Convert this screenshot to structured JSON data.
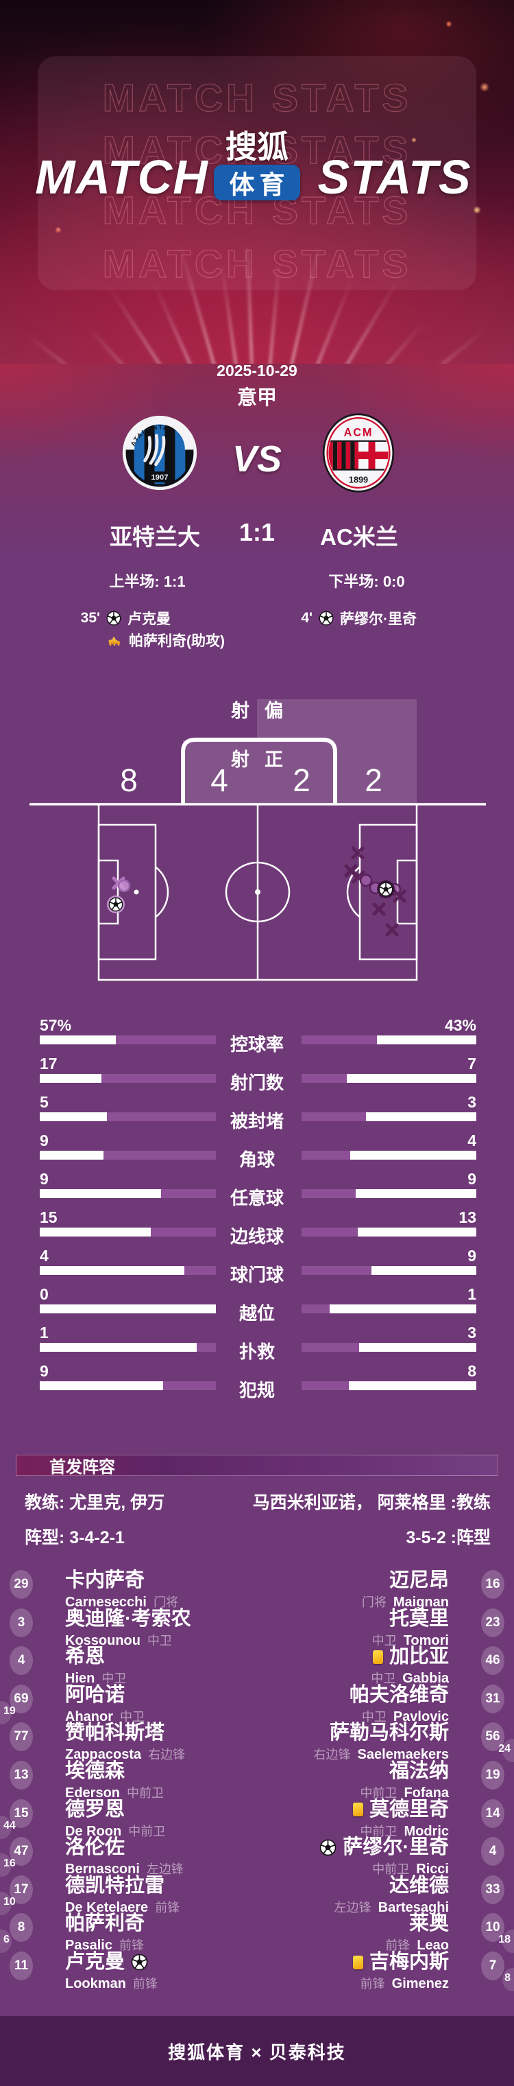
{
  "colors": {
    "page_purple": "#6f3877",
    "footer_purple": "#4a1d50",
    "bar_fill_purple": "#8d4f96",
    "badge_blue": "#1a5faf",
    "marker_dark": "#5a2158",
    "marker_light": "#b578c2",
    "yellow_card": "#f5c518"
  },
  "header": {
    "watermark": "MATCH STATS",
    "title_left": "MATCH",
    "title_right": "STATS",
    "logo_top": "搜狐",
    "logo_bottom": "体育"
  },
  "match": {
    "date": "2025-10-29",
    "league": "意甲",
    "vs": "VS",
    "score": "1:1",
    "home": {
      "name": "亚特兰大",
      "crest_title": "ATALANTA",
      "crest_year": "1907"
    },
    "away": {
      "name": "AC米兰",
      "crest_title": "ACM",
      "crest_year": "1899"
    },
    "half1": "上半场: 1:1",
    "half2": "下半场: 0:0",
    "events_home": [
      {
        "minute": "35'",
        "icon": "goal",
        "text": "卢克曼"
      },
      {
        "minute": "",
        "icon": "assist",
        "text": "帕萨利奇(助攻)"
      }
    ],
    "events_away": [
      {
        "minute": "4'",
        "icon": "goal",
        "text": "萨缪尔·里奇"
      }
    ]
  },
  "shot_chart": {
    "off_label_1": "射",
    "off_label_2": "偏",
    "on_label_1": "射",
    "on_label_2": "正",
    "home_off": "8",
    "home_on": "4",
    "away_on": "2",
    "away_off": "2",
    "markers": [
      {
        "side": "away",
        "kind": "x",
        "x": 173,
        "y": 287
      },
      {
        "side": "away",
        "kind": "circle",
        "x": 181,
        "y": 291
      },
      {
        "side": "away",
        "kind": "ball",
        "x": 169,
        "y": 318
      },
      {
        "side": "home",
        "kind": "x",
        "x": 522,
        "y": 243
      },
      {
        "side": "home",
        "kind": "x",
        "x": 512,
        "y": 269
      },
      {
        "side": "home",
        "kind": "x",
        "x": 523,
        "y": 278
      },
      {
        "side": "home",
        "kind": "circle",
        "x": 534,
        "y": 283
      },
      {
        "side": "home",
        "kind": "circle",
        "x": 548,
        "y": 294
      },
      {
        "side": "home",
        "kind": "circle",
        "x": 576,
        "y": 296
      },
      {
        "side": "home",
        "kind": "x",
        "x": 583,
        "y": 306
      },
      {
        "side": "home",
        "kind": "x",
        "x": 553,
        "y": 325
      },
      {
        "side": "home",
        "kind": "x",
        "x": 572,
        "y": 355
      },
      {
        "side": "home",
        "kind": "ball",
        "x": 563,
        "y": 296
      }
    ]
  },
  "stats": {
    "rows": [
      {
        "label": "控球率",
        "home": "57%",
        "away": "43%",
        "home_fill": 0.57,
        "away_fill": 0.43
      },
      {
        "label": "射门数",
        "home": "17",
        "away": "7",
        "home_fill": 0.65,
        "away_fill": 0.26
      },
      {
        "label": "被封堵",
        "home": "5",
        "away": "3",
        "home_fill": 0.62,
        "away_fill": 0.37
      },
      {
        "label": "角球",
        "home": "9",
        "away": "4",
        "home_fill": 0.64,
        "away_fill": 0.28
      },
      {
        "label": "任意球",
        "home": "9",
        "away": "9",
        "home_fill": 0.31,
        "away_fill": 0.31
      },
      {
        "label": "边线球",
        "home": "15",
        "away": "13",
        "home_fill": 0.37,
        "away_fill": 0.32
      },
      {
        "label": "球门球",
        "home": "4",
        "away": "9",
        "home_fill": 0.18,
        "away_fill": 0.4
      },
      {
        "label": "越位",
        "home": "0",
        "away": "1",
        "home_fill": 0.0,
        "away_fill": 0.16
      },
      {
        "label": "扑救",
        "home": "1",
        "away": "3",
        "home_fill": 0.11,
        "away_fill": 0.33
      },
      {
        "label": "犯规",
        "home": "9",
        "away": "8",
        "home_fill": 0.3,
        "away_fill": 0.27
      }
    ]
  },
  "lineup": {
    "section_title": "首发阵容",
    "coach_home": "教练: 尤里克, 伊万",
    "coach_away": "马西米利亚诺， 阿莱格里 :教练",
    "formation_home": "阵型: 3-4-2-1",
    "formation_away": "3-5-2 :阵型",
    "home": [
      {
        "num": "29",
        "sub": "",
        "cn": "卡内萨奇",
        "en": "Carnesecchi",
        "pos": "门将",
        "icons": []
      },
      {
        "num": "3",
        "sub": "",
        "cn": "奥迪隆·考索农",
        "en": "Kossounou",
        "pos": "中卫",
        "icons": []
      },
      {
        "num": "4",
        "sub": "",
        "cn": "希恩",
        "en": "Hien",
        "pos": "中卫",
        "icons": []
      },
      {
        "num": "69",
        "sub": "19",
        "cn": "阿哈诺",
        "en": "Ahanor",
        "pos": "中卫",
        "icons": []
      },
      {
        "num": "77",
        "sub": "",
        "cn": "赞帕科斯塔",
        "en": "Zappacosta",
        "pos": "右边锋",
        "icons": []
      },
      {
        "num": "13",
        "sub": "",
        "cn": "埃德森",
        "en": "Ederson",
        "pos": "中前卫",
        "icons": []
      },
      {
        "num": "15",
        "sub": "44",
        "cn": "德罗恩",
        "en": "De Roon",
        "pos": "中前卫",
        "icons": []
      },
      {
        "num": "47",
        "sub": "16",
        "cn": "洛伦佐",
        "en": "Bernasconi",
        "pos": "左边锋",
        "icons": []
      },
      {
        "num": "17",
        "sub": "10",
        "cn": "德凯特拉雷",
        "en": "De Ketelaere",
        "pos": "前锋",
        "icons": []
      },
      {
        "num": "8",
        "sub": "6",
        "cn": "帕萨利奇",
        "en": "Pasalic",
        "pos": "前锋",
        "icons": []
      },
      {
        "num": "11",
        "sub": "",
        "cn": "卢克曼",
        "en": "Lookman",
        "pos": "前锋",
        "icons": [
          "goal"
        ]
      }
    ],
    "away": [
      {
        "num": "16",
        "sub": "",
        "cn": "迈尼昂",
        "en": "Maignan",
        "pos": "门将",
        "icons": []
      },
      {
        "num": "23",
        "sub": "",
        "cn": "托莫里",
        "en": "Tomori",
        "pos": "中卫",
        "icons": []
      },
      {
        "num": "46",
        "sub": "",
        "cn": "加比亚",
        "en": "Gabbia",
        "pos": "中卫",
        "icons": [
          "yellow"
        ]
      },
      {
        "num": "31",
        "sub": "",
        "cn": "帕夫洛维奇",
        "en": "Pavlovic",
        "pos": "中卫",
        "icons": []
      },
      {
        "num": "56",
        "sub": "24",
        "cn": "萨勒马科尔斯",
        "en": "Saelemaekers",
        "pos": "右边锋",
        "icons": []
      },
      {
        "num": "19",
        "sub": "",
        "cn": "福法纳",
        "en": "Fofana",
        "pos": "中前卫",
        "icons": []
      },
      {
        "num": "14",
        "sub": "",
        "cn": "莫德里奇",
        "en": "Modric",
        "pos": "中前卫",
        "icons": [
          "yellow"
        ]
      },
      {
        "num": "4",
        "sub": "",
        "cn": "萨缪尔·里奇",
        "en": "Ricci",
        "pos": "中前卫",
        "icons": [
          "goal"
        ]
      },
      {
        "num": "33",
        "sub": "",
        "cn": "达维德",
        "en": "Bartesaghi",
        "pos": "左边锋",
        "icons": []
      },
      {
        "num": "10",
        "sub": "18",
        "cn": "莱奥",
        "en": "Leao",
        "pos": "前锋",
        "icons": []
      },
      {
        "num": "7",
        "sub": "8",
        "cn": "吉梅内斯",
        "en": "Gimenez",
        "pos": "前锋",
        "icons": [
          "yellow"
        ]
      }
    ]
  },
  "footer": {
    "text": "搜狐体育 × 贝泰科技"
  },
  "chart_data": [
    {
      "type": "bar",
      "title": "亚特兰大 1:1 AC米兰 比赛数据",
      "categories": [
        "控球率",
        "射门数",
        "被封堵",
        "角球",
        "任意球",
        "边线球",
        "球门球",
        "越位",
        "扑救",
        "犯规"
      ],
      "series": [
        {
          "name": "亚特兰大",
          "values": [
            57,
            17,
            5,
            9,
            9,
            15,
            4,
            0,
            1,
            9
          ]
        },
        {
          "name": "AC米兰",
          "values": [
            43,
            7,
            3,
            4,
            9,
            13,
            9,
            1,
            3,
            8
          ]
        }
      ],
      "xlabel": "",
      "ylabel": "",
      "legend_position": "none"
    },
    {
      "type": "scatter",
      "title": "射门分布 射正/射偏",
      "series": [
        {
          "name": "亚特兰大",
          "values": {
            "on_target": 4,
            "off_target": 8
          }
        },
        {
          "name": "AC米兰",
          "values": {
            "on_target": 2,
            "off_target": 2
          }
        }
      ]
    }
  ]
}
